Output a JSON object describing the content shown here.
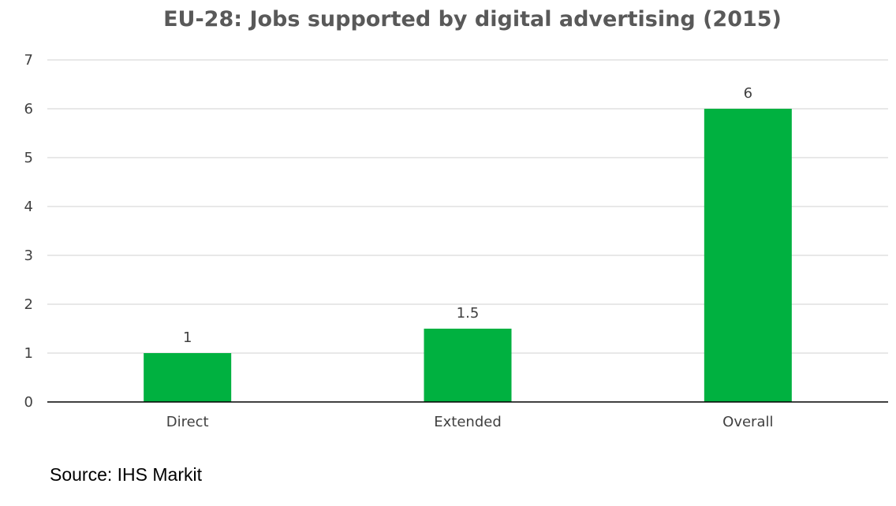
{
  "chart_data": {
    "type": "bar",
    "title": "EU-28: Jobs supported by digital advertising (2015)",
    "categories": [
      "Direct",
      "Extended",
      "Overall"
    ],
    "values": [
      1,
      1.5,
      6
    ],
    "data_labels": [
      "1",
      "1.5",
      "6"
    ],
    "ylim": [
      0,
      7
    ],
    "yticks": [
      "0",
      "1",
      "2",
      "3",
      "4",
      "5",
      "6",
      "7"
    ],
    "xlabel": "",
    "ylabel": "",
    "grid": true,
    "bar_color": "#00b140"
  },
  "source": "Source: IHS Markit"
}
